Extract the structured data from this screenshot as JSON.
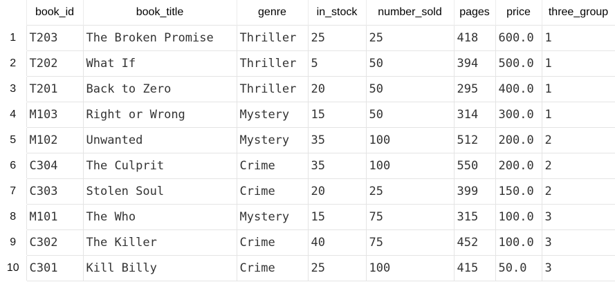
{
  "columns": [
    "",
    "book_id",
    "book_title",
    "genre",
    "in_stock",
    "number_sold",
    "pages",
    "price",
    "three_group"
  ],
  "rows": [
    [
      "1",
      "T203",
      "The Broken Promise",
      "Thriller",
      "25",
      "25",
      "418",
      "600.0",
      "1"
    ],
    [
      "2",
      "T202",
      "What If",
      "Thriller",
      "5",
      "50",
      "394",
      "500.0",
      "1"
    ],
    [
      "3",
      "T201",
      "Back to Zero",
      "Thriller",
      "20",
      "50",
      "295",
      "400.0",
      "1"
    ],
    [
      "4",
      "M103",
      "Right or Wrong",
      "Mystery",
      "15",
      "50",
      "314",
      "300.0",
      "1"
    ],
    [
      "5",
      "M102",
      "Unwanted",
      "Mystery",
      "35",
      "100",
      "512",
      "200.0",
      "2"
    ],
    [
      "6",
      "C304",
      "The Culprit",
      "Crime",
      "35",
      "100",
      "550",
      "200.0",
      "2"
    ],
    [
      "7",
      "C303",
      "Stolen Soul",
      "Crime",
      "20",
      "25",
      "399",
      "150.0",
      "2"
    ],
    [
      "8",
      "M101",
      "The Who",
      "Mystery",
      "15",
      "75",
      "315",
      "100.0",
      "3"
    ],
    [
      "9",
      "C302",
      "The Killer",
      "Crime",
      "40",
      "75",
      "452",
      "100.0",
      "3"
    ],
    [
      "10",
      "C301",
      "Kill Billy",
      "Crime",
      "25",
      "100",
      "415",
      "50.0",
      "3"
    ]
  ]
}
